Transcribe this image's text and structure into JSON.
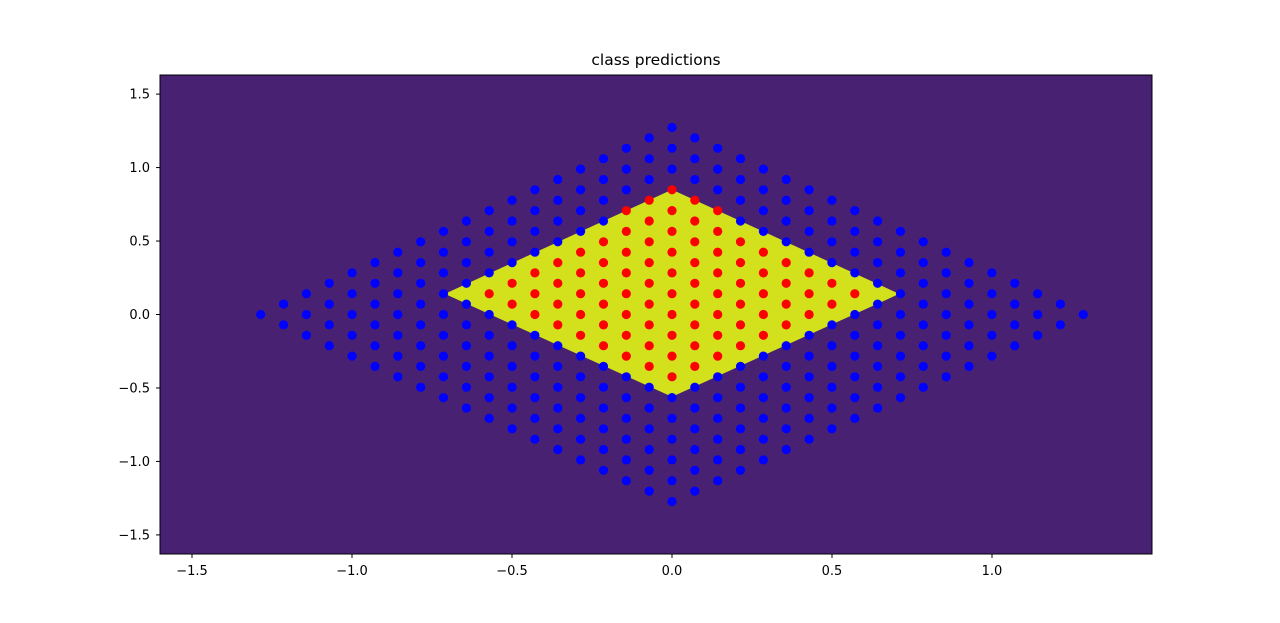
{
  "chart_data": {
    "type": "scatter",
    "title": "class predictions",
    "xlabel": "",
    "ylabel": "",
    "xlim": [
      -1.6,
      1.5
    ],
    "ylim": [
      -1.63,
      1.63
    ],
    "grid": false,
    "legend": "none",
    "xticks": [
      -1.5,
      -1.0,
      -0.5,
      0.0,
      0.5,
      1.0
    ],
    "xtick_labels": [
      "−1.5",
      "−1.0",
      "−0.5",
      "0.0",
      "0.5",
      "1.0"
    ],
    "yticks": [
      -1.5,
      -1.0,
      -0.5,
      0.0,
      0.5,
      1.0,
      1.5
    ],
    "ytick_labels": [
      "−1.5",
      "−1.0",
      "−0.5",
      "0.0",
      "0.5",
      "1.0",
      "1.5"
    ],
    "background_region": {
      "class": 0,
      "color": "#482173"
    },
    "decision_region": {
      "class": 1,
      "color": "#d2e11b",
      "polygon": [
        [
          0.0,
          0.85
        ],
        [
          0.71,
          0.14
        ],
        [
          0.0,
          -0.56
        ],
        [
          -0.71,
          0.14
        ]
      ]
    },
    "point_grid": {
      "x_step": 0.0714,
      "y_step": 0.0707,
      "outer_diamond_half_width": 1.35,
      "outer_diamond_half_height": 1.35,
      "shape": "diamond"
    },
    "series": [
      {
        "class": 0,
        "color": "#0000ff"
      },
      {
        "class": 1,
        "color": "#ff0000"
      }
    ]
  }
}
